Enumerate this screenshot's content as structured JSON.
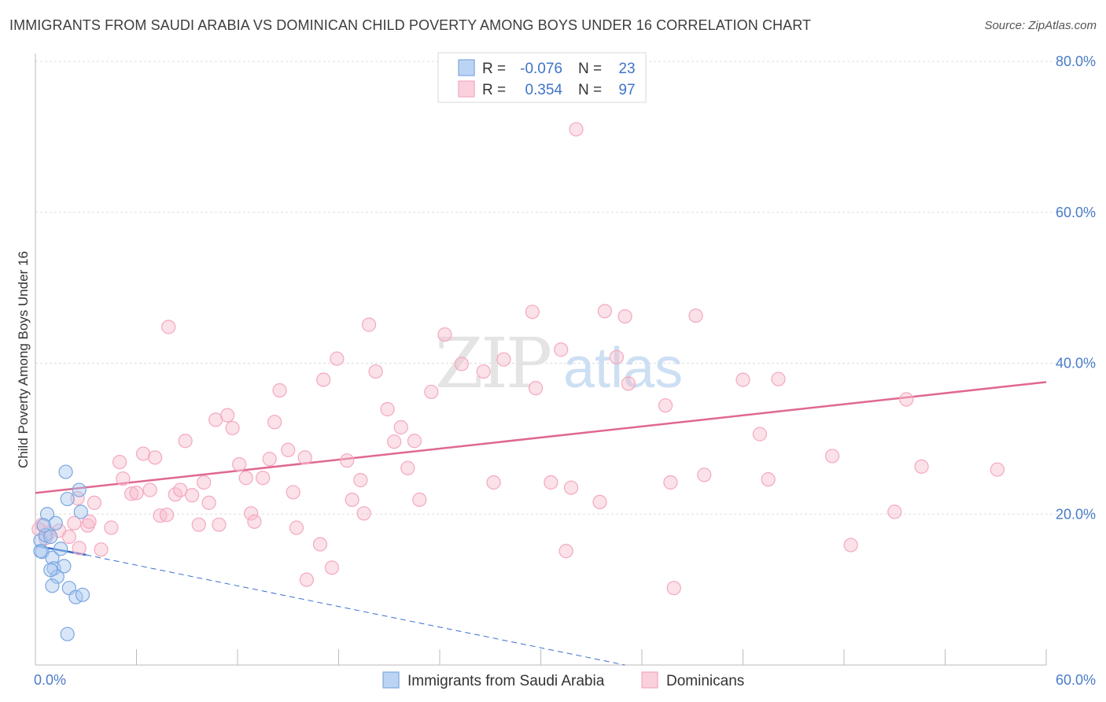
{
  "header": {
    "title": "IMMIGRANTS FROM SAUDI ARABIA VS DOMINICAN CHILD POVERTY AMONG BOYS UNDER 16 CORRELATION CHART",
    "source": "Source: ZipAtlas.com"
  },
  "chart_data": {
    "type": "scatter",
    "title": "IMMIGRANTS FROM SAUDI ARABIA VS DOMINICAN CHILD POVERTY AMONG BOYS UNDER 16 CORRELATION CHART",
    "xlabel": "",
    "ylabel": "Child Poverty Among Boys Under 16",
    "xlim": [
      0,
      60
    ],
    "ylim": [
      0,
      80
    ],
    "x_tick_labels": [
      "0.0%",
      "60.0%"
    ],
    "y_ticks": [
      20,
      40,
      60,
      80
    ],
    "y_tick_labels": [
      "20.0%",
      "40.0%",
      "60.0%",
      "80.0%"
    ],
    "watermark": "ZIPatlas",
    "legend": {
      "rows": [
        {
          "r_label": "R =",
          "r_value": "-0.076",
          "n_label": "N =",
          "n_value": "23"
        },
        {
          "r_label": "R =",
          "r_value": "0.354",
          "n_label": "N =",
          "n_value": "97"
        }
      ]
    },
    "series": [
      {
        "name": "Immigrants from Saudi Arabia",
        "color": "#7ba7e0",
        "line_color": "#3a6fcc",
        "trend": {
          "x0": 0,
          "y0": 15.8,
          "x1": 3,
          "y1": 14.6,
          "dash_to_x": 35,
          "dash_to_y": 0
        },
        "points": [
          [
            0.3,
            16.5
          ],
          [
            0.6,
            17.2
          ],
          [
            0.9,
            17.0
          ],
          [
            0.4,
            15.0
          ],
          [
            0.7,
            20.0
          ],
          [
            1.2,
            18.8
          ],
          [
            1.0,
            14.2
          ],
          [
            1.1,
            12.8
          ],
          [
            1.3,
            11.7
          ],
          [
            1.7,
            13.1
          ],
          [
            0.9,
            12.6
          ],
          [
            1.0,
            10.5
          ],
          [
            1.5,
            15.4
          ],
          [
            1.9,
            22.0
          ],
          [
            2.0,
            10.2
          ],
          [
            2.4,
            9.0
          ],
          [
            2.8,
            9.3
          ],
          [
            2.7,
            20.3
          ],
          [
            2.6,
            23.2
          ],
          [
            1.8,
            25.6
          ],
          [
            1.9,
            4.1
          ],
          [
            0.5,
            18.5
          ],
          [
            0.3,
            15.1
          ]
        ]
      },
      {
        "name": "Dominicans",
        "color": "#f4a8c0",
        "line_color": "#e06890",
        "trend": {
          "x0": 0,
          "y0": 22.8,
          "x1": 60,
          "y1": 37.5
        },
        "points": [
          [
            0.4,
            18.6
          ],
          [
            0.8,
            17.5
          ],
          [
            1.4,
            17.8
          ],
          [
            2.0,
            17.0
          ],
          [
            2.3,
            18.8
          ],
          [
            2.5,
            22.1
          ],
          [
            2.6,
            15.5
          ],
          [
            3.1,
            18.5
          ],
          [
            3.2,
            19.0
          ],
          [
            3.5,
            21.5
          ],
          [
            3.9,
            15.3
          ],
          [
            4.5,
            18.2
          ],
          [
            5.0,
            26.9
          ],
          [
            5.2,
            24.7
          ],
          [
            5.7,
            22.7
          ],
          [
            6.0,
            22.8
          ],
          [
            6.4,
            28.0
          ],
          [
            6.8,
            23.2
          ],
          [
            7.1,
            27.5
          ],
          [
            7.4,
            19.8
          ],
          [
            7.8,
            19.9
          ],
          [
            7.9,
            44.8
          ],
          [
            8.3,
            22.6
          ],
          [
            8.6,
            23.2
          ],
          [
            8.9,
            29.7
          ],
          [
            9.3,
            22.5
          ],
          [
            9.7,
            18.6
          ],
          [
            10.0,
            24.2
          ],
          [
            10.3,
            21.5
          ],
          [
            10.7,
            32.5
          ],
          [
            10.9,
            18.6
          ],
          [
            11.4,
            33.1
          ],
          [
            11.7,
            31.4
          ],
          [
            12.1,
            26.6
          ],
          [
            12.5,
            24.8
          ],
          [
            12.8,
            20.1
          ],
          [
            13.0,
            19.0
          ],
          [
            13.5,
            24.8
          ],
          [
            13.9,
            27.3
          ],
          [
            14.2,
            32.2
          ],
          [
            14.5,
            36.4
          ],
          [
            15.0,
            28.5
          ],
          [
            15.3,
            22.9
          ],
          [
            15.5,
            18.2
          ],
          [
            16.0,
            27.5
          ],
          [
            16.1,
            11.3
          ],
          [
            16.9,
            16.0
          ],
          [
            17.1,
            37.8
          ],
          [
            17.6,
            12.9
          ],
          [
            17.9,
            40.6
          ],
          [
            18.5,
            27.1
          ],
          [
            18.8,
            21.9
          ],
          [
            19.3,
            24.5
          ],
          [
            19.5,
            20.1
          ],
          [
            19.8,
            45.1
          ],
          [
            20.2,
            38.9
          ],
          [
            20.9,
            33.9
          ],
          [
            21.3,
            29.6
          ],
          [
            21.7,
            31.5
          ],
          [
            22.1,
            26.1
          ],
          [
            22.5,
            29.7
          ],
          [
            22.8,
            21.9
          ],
          [
            23.5,
            36.2
          ],
          [
            24.3,
            43.8
          ],
          [
            25.3,
            39.9
          ],
          [
            26.6,
            38.9
          ],
          [
            27.2,
            24.2
          ],
          [
            27.8,
            40.5
          ],
          [
            29.5,
            46.8
          ],
          [
            29.7,
            36.7
          ],
          [
            30.6,
            24.2
          ],
          [
            31.2,
            41.8
          ],
          [
            31.5,
            15.1
          ],
          [
            31.8,
            23.5
          ],
          [
            32.1,
            71.0
          ],
          [
            33.5,
            21.6
          ],
          [
            33.8,
            46.9
          ],
          [
            34.5,
            40.8
          ],
          [
            35.0,
            46.2
          ],
          [
            35.2,
            37.3
          ],
          [
            37.4,
            34.4
          ],
          [
            37.7,
            24.2
          ],
          [
            37.9,
            10.2
          ],
          [
            39.2,
            46.3
          ],
          [
            39.7,
            25.2
          ],
          [
            42.0,
            37.8
          ],
          [
            43.0,
            30.6
          ],
          [
            43.5,
            24.6
          ],
          [
            44.1,
            37.9
          ],
          [
            47.3,
            27.7
          ],
          [
            48.4,
            15.9
          ],
          [
            51.0,
            20.3
          ],
          [
            51.7,
            35.2
          ],
          [
            52.6,
            26.3
          ],
          [
            57.1,
            25.9
          ],
          [
            0.2,
            18.0
          ],
          [
            0.6,
            16.8
          ]
        ]
      }
    ]
  },
  "bottom_legend": {
    "items": [
      "Immigrants from Saudi Arabia",
      "Dominicans"
    ]
  }
}
